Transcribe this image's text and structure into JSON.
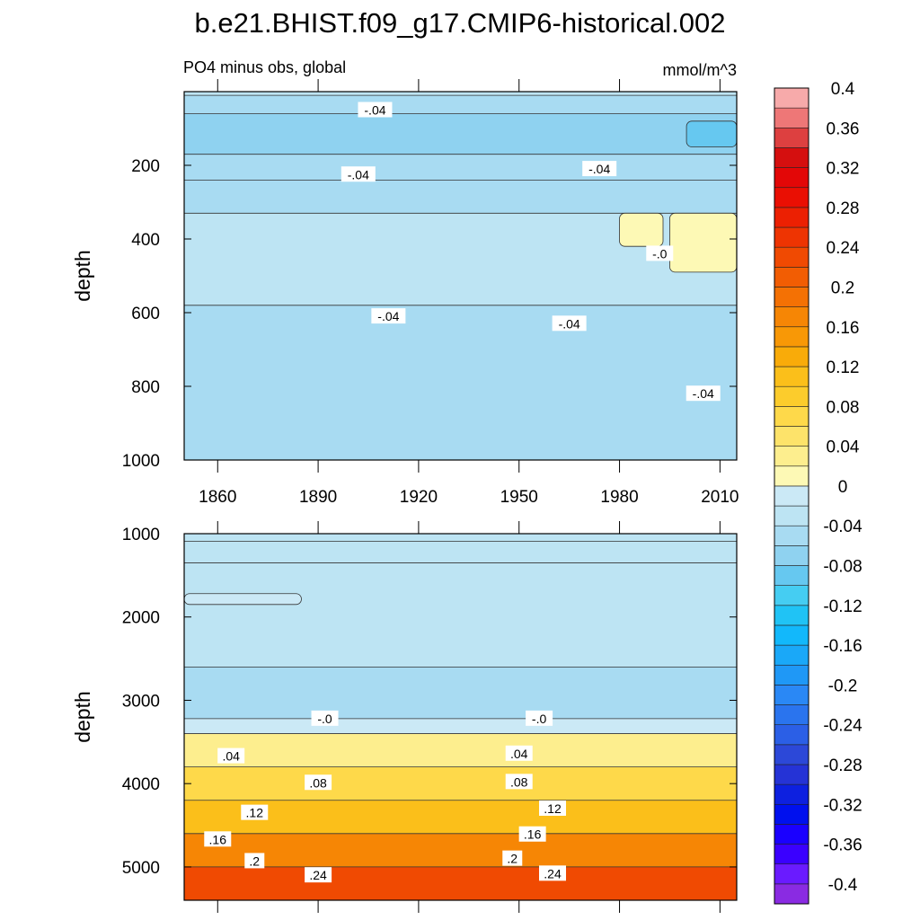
{
  "title": "b.e21.BHIST.f09_g17.CMIP6-historical.002",
  "subtitle_left": "PO4 minus obs, global",
  "subtitle_right": "mmol/m^3",
  "chart_data": [
    {
      "type": "heatmap",
      "panel": "upper",
      "ylabel": "depth",
      "xlabel": "",
      "xlim": [
        1850,
        2015
      ],
      "ylim": [
        1000,
        0
      ],
      "x_ticks": [
        1860,
        1890,
        1920,
        1950,
        1980,
        2010
      ],
      "y_ticks": [
        200,
        400,
        600,
        800,
        1000
      ],
      "bands": [
        {
          "depth": [
            0,
            10
          ],
          "value": -0.02
        },
        {
          "depth": [
            10,
            60
          ],
          "value": -0.04
        },
        {
          "depth": [
            60,
            170
          ],
          "value": -0.06
        },
        {
          "depth": [
            170,
            240
          ],
          "value": -0.04
        },
        {
          "depth": [
            240,
            330
          ],
          "value": -0.04
        },
        {
          "depth": [
            330,
            580
          ],
          "value": -0.02
        },
        {
          "depth": [
            580,
            1000
          ],
          "value": -0.04
        }
      ],
      "patches": [
        {
          "years": [
            1980,
            1993
          ],
          "depth": [
            330,
            420
          ],
          "value": 0.02
        },
        {
          "years": [
            1995,
            2015
          ],
          "depth": [
            330,
            490
          ],
          "value": 0.02
        },
        {
          "years": [
            2000,
            2015
          ],
          "depth": [
            80,
            150
          ],
          "value": -0.08
        }
      ],
      "contour_labels": [
        {
          "text": "-.04",
          "year": 1907,
          "depth": 50
        },
        {
          "text": "-.04",
          "year": 1902,
          "depth": 225
        },
        {
          "text": "-.04",
          "year": 1974,
          "depth": 210
        },
        {
          "text": "-.0",
          "year": 1992,
          "depth": 440
        },
        {
          "text": "-.04",
          "year": 1911,
          "depth": 610
        },
        {
          "text": "-.04",
          "year": 1965,
          "depth": 630
        },
        {
          "text": "-.04",
          "year": 2005,
          "depth": 820
        }
      ]
    },
    {
      "type": "heatmap",
      "panel": "lower",
      "ylabel": "depth",
      "xlabel": "",
      "xlim": [
        1850,
        2015
      ],
      "ylim": [
        5400,
        1000
      ],
      "y_ticks": [
        1000,
        2000,
        3000,
        4000,
        5000
      ],
      "bands": [
        {
          "depth": [
            1000,
            1090
          ],
          "value": -0.02
        },
        {
          "depth": [
            1090,
            1350
          ],
          "value": -0.02
        },
        {
          "depth": [
            1350,
            2600
          ],
          "value": -0.02
        },
        {
          "depth": [
            2600,
            3220
          ],
          "value": -0.03
        },
        {
          "depth": [
            3220,
            3400
          ],
          "value": 0.01
        },
        {
          "depth": [
            3400,
            3800
          ],
          "value": 0.05
        },
        {
          "depth": [
            3800,
            4200
          ],
          "value": 0.09
        },
        {
          "depth": [
            4200,
            4600
          ],
          "value": 0.13
        },
        {
          "depth": [
            4600,
            5000
          ],
          "value": 0.18
        },
        {
          "depth": [
            5000,
            5400
          ],
          "value": 0.24
        }
      ],
      "patches": [
        {
          "years": [
            1850,
            1885
          ],
          "depth": [
            1720,
            1850
          ],
          "value": 0.01
        }
      ],
      "contour_labels": [
        {
          "text": "-.0",
          "year": 1892,
          "depth": 3220
        },
        {
          "text": "-.0",
          "year": 1956,
          "depth": 3220
        },
        {
          "text": ".04",
          "year": 1864,
          "depth": 3670
        },
        {
          "text": ".04",
          "year": 1950,
          "depth": 3640
        },
        {
          "text": ".08",
          "year": 1890,
          "depth": 3990
        },
        {
          "text": ".08",
          "year": 1950,
          "depth": 3980
        },
        {
          "text": ".12",
          "year": 1871,
          "depth": 4350
        },
        {
          "text": ".12",
          "year": 1960,
          "depth": 4300
        },
        {
          "text": ".16",
          "year": 1860,
          "depth": 4670
        },
        {
          "text": ".16",
          "year": 1954,
          "depth": 4610
        },
        {
          "text": ".2",
          "year": 1871,
          "depth": 4930
        },
        {
          "text": ".2",
          "year": 1948,
          "depth": 4900
        },
        {
          "text": ".24",
          "year": 1890,
          "depth": 5100
        },
        {
          "text": ".24",
          "year": 1960,
          "depth": 5080
        }
      ]
    }
  ],
  "colorbar": {
    "levels": [
      -0.4,
      -0.38,
      -0.36,
      -0.34,
      -0.32,
      -0.3,
      -0.28,
      -0.26,
      -0.24,
      -0.22,
      -0.2,
      -0.18,
      -0.16,
      -0.14,
      -0.12,
      -0.1,
      -0.08,
      -0.06,
      -0.04,
      -0.02,
      0,
      0.02,
      0.04,
      0.06,
      0.08,
      0.1,
      0.12,
      0.14,
      0.16,
      0.18,
      0.2,
      0.22,
      0.24,
      0.26,
      0.28,
      0.3,
      0.32,
      0.34,
      0.36,
      0.38,
      0.4
    ],
    "labels": [
      "-0.4",
      "-0.36",
      "-0.32",
      "-0.28",
      "-0.24",
      "-0.2",
      "-0.16",
      "-0.12",
      "-0.08",
      "-0.04",
      "0",
      "0.04",
      "0.08",
      "0.12",
      "0.16",
      "0.2",
      "0.24",
      "0.28",
      "0.32",
      "0.36",
      "0.4"
    ],
    "colors": [
      "#8a2be2",
      "#6a1bff",
      "#3a00ff",
      "#1a00ff",
      "#0010ee",
      "#0d20e0",
      "#2533d6",
      "#2c48d8",
      "#2b5fe6",
      "#2a74ee",
      "#2a88f5",
      "#1f98f6",
      "#1aa8f8",
      "#12b8fb",
      "#20c3f5",
      "#45cdf2",
      "#66c8f0",
      "#8fd2f0",
      "#a8dbf2",
      "#bde4f3",
      "#cbe9f6",
      "#fdf9b5",
      "#fdee8e",
      "#fde36a",
      "#fed94a",
      "#fccc2c",
      "#fbbf1a",
      "#f9ab09",
      "#f89806",
      "#f68605",
      "#f47104",
      "#f25d03",
      "#f04a02",
      "#ee3402",
      "#ec2002",
      "#ea0f03",
      "#e30707",
      "#d50f0f",
      "#dd4040",
      "#ee7777",
      "#f7aaaa"
    ]
  }
}
